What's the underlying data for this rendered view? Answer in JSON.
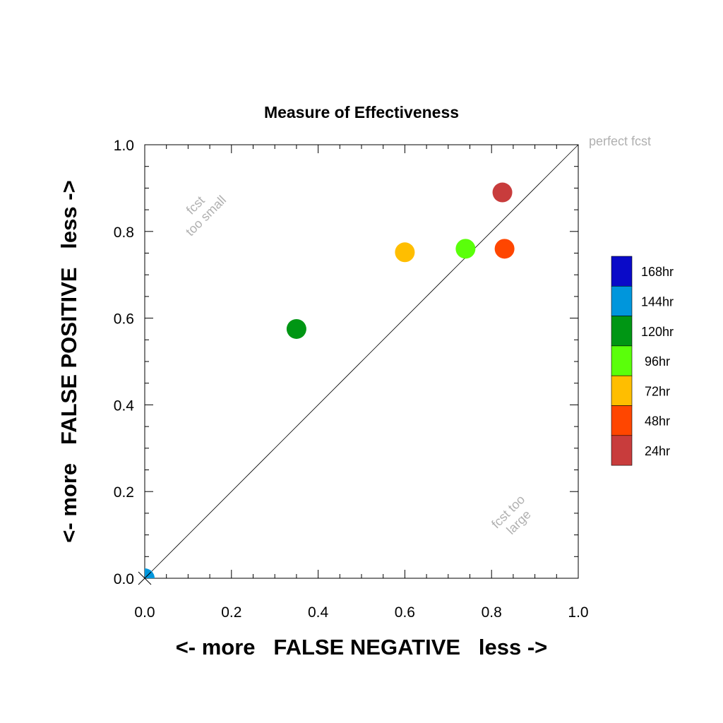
{
  "chart_data": {
    "type": "scatter",
    "title": "Measure of Effectiveness",
    "xlabel": "<- more   FALSE NEGATIVE   less ->",
    "ylabel": "<- more   FALSE POSITIVE   less ->",
    "xlim": [
      0,
      1
    ],
    "ylim": [
      0,
      1
    ],
    "x_ticks": [
      "0.0",
      "0.2",
      "0.4",
      "0.6",
      "0.8",
      "1.0"
    ],
    "y_ticks": [
      "0.0",
      "0.2",
      "0.4",
      "0.6",
      "0.8",
      "1.0"
    ],
    "grid": false,
    "reference_line": {
      "from": [
        0,
        0
      ],
      "to": [
        1,
        1
      ]
    },
    "annotations": {
      "perfect": "perfect fcst",
      "too_small": [
        "fcst",
        "too small"
      ],
      "too_large": [
        "fcst too",
        "large"
      ]
    },
    "legend_position": "right",
    "series": [
      {
        "name": "168hr",
        "color": "#0a0ac8",
        "x": null,
        "y": null
      },
      {
        "name": "144hr",
        "color": "#0096dc",
        "x": 0.0,
        "y": 0.0
      },
      {
        "name": "120hr",
        "color": "#009614",
        "x": 0.35,
        "y": 0.575
      },
      {
        "name": "96hr",
        "color": "#5aff0a",
        "x": 0.74,
        "y": 0.76
      },
      {
        "name": "72hr",
        "color": "#ffbe00",
        "x": 0.6,
        "y": 0.752
      },
      {
        "name": "48hr",
        "color": "#ff4600",
        "x": 0.83,
        "y": 0.76
      },
      {
        "name": "24hr",
        "color": "#c83c3c",
        "x": 0.825,
        "y": 0.89
      }
    ]
  }
}
